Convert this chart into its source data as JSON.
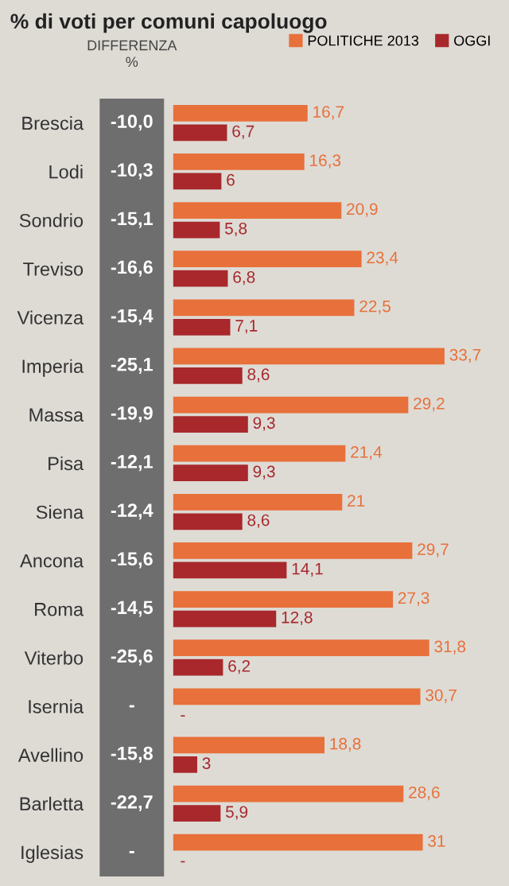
{
  "chart_data": [
    {
      "type": "other",
      "title": "% di voti per comuni capoluogo",
      "subtitle": "DIFFERENZA\n%",
      "value_labels": [
        "-10,0",
        "-10,3",
        "-15,1",
        "-16,6",
        "-15,4",
        "-25,1",
        "-19,9",
        "-12,1",
        "-12,4",
        "-15,6",
        "-14,5",
        "-25,6",
        "-",
        "-15,8",
        "-22,7",
        "-"
      ],
      "color": "#6e6e6e"
    },
    {
      "type": "bar",
      "orientation": "horizontal",
      "legend": "top right",
      "categories": [
        "Brescia",
        "Lodi",
        "Sondrio",
        "Treviso",
        "Vicenza",
        "Imperia",
        "Massa",
        "Pisa",
        "Siena",
        "Ancona",
        "Roma",
        "Viterbo",
        "Isernia",
        "Avellino",
        "Barletta",
        "Iglesias"
      ],
      "series": [
        {
          "name": "POLITICHE 2013",
          "color": "#e8703a",
          "values": [
            16.7,
            16.3,
            20.9,
            23.4,
            22.5,
            33.7,
            29.2,
            21.4,
            21,
            29.7,
            27.3,
            31.8,
            30.7,
            18.8,
            28.6,
            31
          ],
          "value_labels": [
            "16,7",
            "16,3",
            "20,9",
            "23,4",
            "22,5",
            "33,7",
            "29,2",
            "21,4",
            "21",
            "29,7",
            "27,3",
            "31,8",
            "30,7",
            "18,8",
            "28,6",
            "31"
          ]
        },
        {
          "name": "OGGI",
          "color": "#a8282c",
          "values": [
            6.7,
            6,
            5.8,
            6.8,
            7.1,
            8.6,
            9.3,
            9.3,
            8.6,
            14.1,
            12.8,
            6.2,
            null,
            3,
            5.9,
            null
          ],
          "value_labels": [
            "6,7",
            "6",
            "5,8",
            "6,8",
            "7,1",
            "8,6",
            "9,3",
            "9,3",
            "8,6",
            "14,1",
            "12,8",
            "6,2",
            "-",
            "3",
            "5,9",
            "-"
          ]
        }
      ]
    }
  ]
}
